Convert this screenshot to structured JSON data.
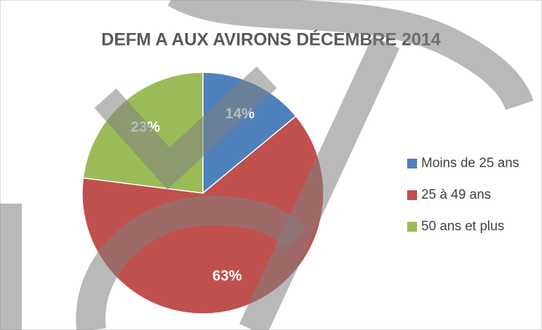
{
  "chart_data": {
    "type": "pie",
    "title": "DEFM A AUX AVIRONS DÉCEMBRE 2014",
    "categories": [
      "Moins de 25 ans",
      "25 à 49 ans",
      "50 ans et plus"
    ],
    "values": [
      14,
      63,
      23
    ],
    "value_labels": [
      "14%",
      "63%",
      "23%"
    ],
    "colors": [
      "#4f81bd",
      "#c0504d",
      "#9bbb59"
    ],
    "legend": "right"
  }
}
